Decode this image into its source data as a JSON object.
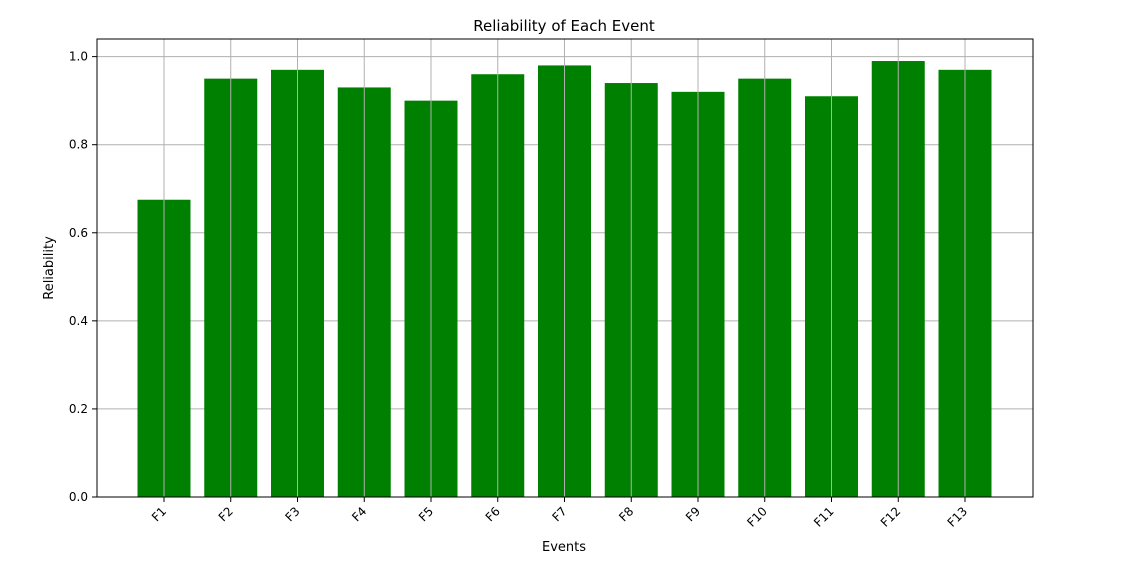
{
  "chart_data": {
    "type": "bar",
    "title": "Reliability of Each Event",
    "xlabel": "Events",
    "ylabel": "Reliability",
    "categories": [
      "F1",
      "F2",
      "F3",
      "F4",
      "F5",
      "F6",
      "F7",
      "F8",
      "F9",
      "F10",
      "F11",
      "F12",
      "F13"
    ],
    "values": [
      0.675,
      0.95,
      0.97,
      0.93,
      0.9,
      0.96,
      0.98,
      0.94,
      0.92,
      0.95,
      0.91,
      0.99,
      0.97
    ],
    "ylim": [
      0,
      1.04
    ],
    "yticks": [
      "0.0",
      "0.2",
      "0.4",
      "0.6",
      "0.8",
      "1.0"
    ],
    "grid": true,
    "bar_color": "#008000",
    "grid_color": "#b0b0b0"
  }
}
